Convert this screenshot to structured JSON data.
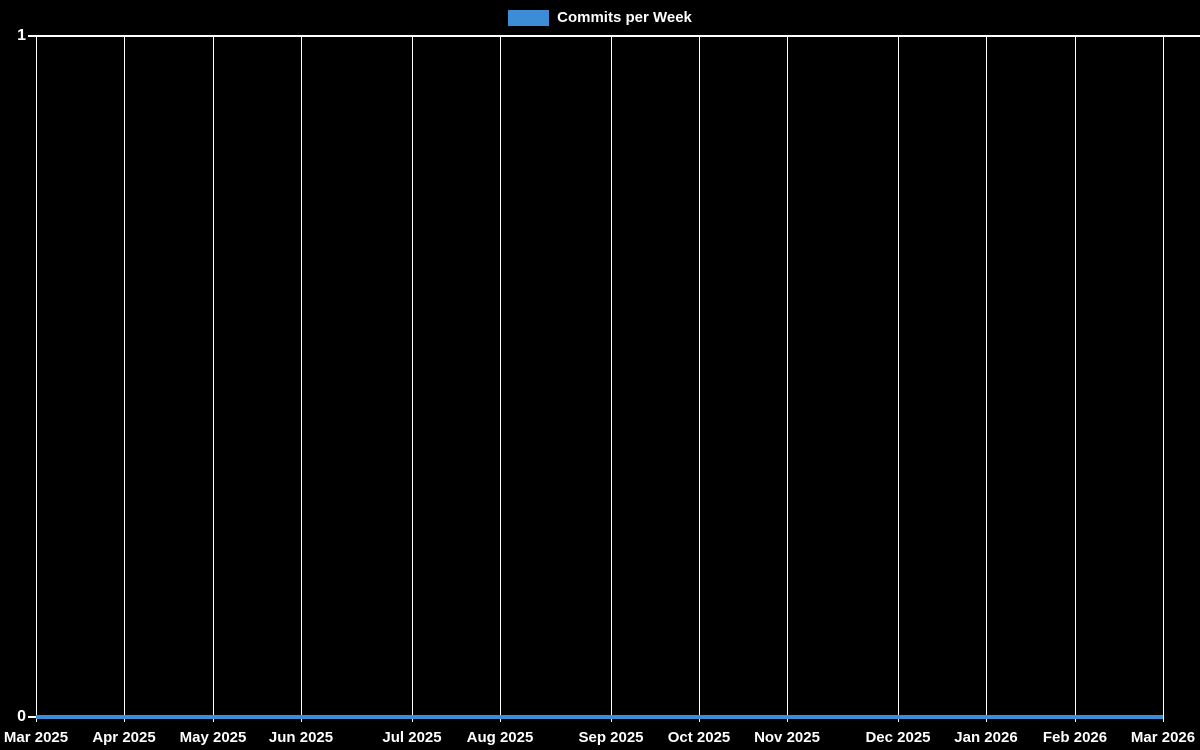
{
  "colors": {
    "background": "#000000",
    "grid": "#ffffff",
    "text": "#ffffff",
    "series_blue": "#3c8cd8"
  },
  "legend": {
    "label": "Commits per Week"
  },
  "chart_data": {
    "type": "line",
    "title": "",
    "xlabel": "",
    "ylabel": "",
    "legend_entries": [
      "Commits per Week"
    ],
    "legend_position": "top-center",
    "grid": true,
    "background": "#000000",
    "categories": [
      "Mar 2025",
      "Apr 2025",
      "May 2025",
      "Jun 2025",
      "Jul 2025",
      "Aug 2025",
      "Sep 2025",
      "Oct 2025",
      "Nov 2025",
      "Dec 2025",
      "Jan 2026",
      "Feb 2026",
      "Mar 2026"
    ],
    "week_offsets": [
      0,
      4,
      8,
      12,
      17,
      21,
      26,
      30,
      34,
      39,
      43,
      47,
      51
    ],
    "total_weeks": 51,
    "series": [
      {
        "name": "Commits per Week",
        "color": "#3c8cd8",
        "values": [
          0,
          0,
          0,
          0,
          0,
          0,
          0,
          0,
          0,
          0,
          0,
          0,
          0
        ]
      }
    ],
    "yticks": [
      "0",
      "1"
    ],
    "ylim": [
      0,
      1
    ]
  }
}
